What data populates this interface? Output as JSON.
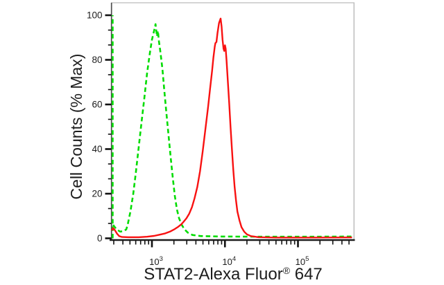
{
  "chart_data": {
    "type": "line",
    "chart_kind": "flow-cytometry-histogram-overlay",
    "title": "",
    "ylabel": "Cell Counts (% Max)",
    "xlabel": {
      "main": "STAT2-Alexa Fluor",
      "sup": "®",
      "suffix": " 647"
    },
    "x_axis": {
      "scale": "log10",
      "range": [
        282,
        580000
      ],
      "major_ticks": [
        {
          "value": 1000,
          "base": "10",
          "exp": "3"
        },
        {
          "value": 10000,
          "base": "10",
          "exp": "4"
        },
        {
          "value": 100000,
          "base": "10",
          "exp": "5"
        }
      ],
      "minor_tick_pattern": "log-decade-2-to-9"
    },
    "y_axis": {
      "range": [
        0,
        100
      ],
      "major_ticks": [
        0,
        20,
        40,
        60,
        80,
        100
      ],
      "minor_divisions_per_major": 3
    },
    "legend": "none",
    "grid": "off",
    "series": [
      {
        "name": "negative-control",
        "style": "dashed",
        "color": "#00dc00",
        "boundary_spike": {
          "x": 290,
          "from": 0,
          "to": 100
        },
        "points": [
          [
            294,
            6
          ],
          [
            328,
            4
          ],
          [
            366,
            3
          ],
          [
            408,
            3.2
          ],
          [
            445,
            4
          ],
          [
            465,
            6
          ],
          [
            508,
            12
          ],
          [
            555,
            20
          ],
          [
            605,
            30
          ],
          [
            660,
            41
          ],
          [
            721,
            52
          ],
          [
            787,
            63
          ],
          [
            858,
            74
          ],
          [
            937,
            83
          ],
          [
            1000,
            89
          ],
          [
            1070,
            93
          ],
          [
            1120,
            96
          ],
          [
            1170,
            90.5
          ],
          [
            1210,
            93
          ],
          [
            1240,
            89
          ],
          [
            1300,
            84
          ],
          [
            1390,
            76
          ],
          [
            1480,
            66
          ],
          [
            1580,
            56
          ],
          [
            1690,
            46
          ],
          [
            1810,
            36
          ],
          [
            1930,
            27
          ],
          [
            2060,
            19
          ],
          [
            2200,
            13
          ],
          [
            2350,
            9
          ],
          [
            2560,
            6
          ],
          [
            2790,
            4
          ],
          [
            3110,
            2.5
          ],
          [
            3590,
            1.5
          ],
          [
            4700,
            1
          ],
          [
            9080,
            0.8
          ],
          [
            33700,
            0.7
          ],
          [
            156000,
            0.7
          ],
          [
            578000,
            0.8
          ]
        ]
      },
      {
        "name": "stat2-stained",
        "style": "solid",
        "color": "#f81111",
        "points": [
          [
            282,
            3.5
          ],
          [
            294,
            4.6
          ],
          [
            313,
            3.5
          ],
          [
            334,
            2
          ],
          [
            356,
            1
          ],
          [
            389,
            0.6
          ],
          [
            475,
            0.5
          ],
          [
            660,
            0.5
          ],
          [
            858,
            0.7
          ],
          [
            1070,
            1.1
          ],
          [
            1270,
            1.6
          ],
          [
            1520,
            2.2
          ],
          [
            1770,
            3
          ],
          [
            2020,
            4
          ],
          [
            2250,
            5
          ],
          [
            2510,
            6.2
          ],
          [
            2730,
            7.5
          ],
          [
            2970,
            9
          ],
          [
            3240,
            11
          ],
          [
            3530,
            14
          ],
          [
            3840,
            18
          ],
          [
            4180,
            23
          ],
          [
            4550,
            30
          ],
          [
            4960,
            39
          ],
          [
            5400,
            49
          ],
          [
            5880,
            59
          ],
          [
            6260,
            67
          ],
          [
            6670,
            75
          ],
          [
            6950,
            81
          ],
          [
            7250,
            86
          ],
          [
            7410,
            87.5
          ],
          [
            7650,
            88
          ],
          [
            7900,
            92
          ],
          [
            8300,
            96.5
          ],
          [
            8720,
            98.5
          ],
          [
            9000,
            95
          ],
          [
            9280,
            89
          ],
          [
            9570,
            85
          ],
          [
            9780,
            84
          ],
          [
            10000,
            86.5
          ],
          [
            10230,
            85
          ],
          [
            10500,
            80
          ],
          [
            10930,
            71
          ],
          [
            11410,
            61
          ],
          [
            11920,
            50
          ],
          [
            12450,
            40
          ],
          [
            13000,
            31
          ],
          [
            13570,
            23
          ],
          [
            14180,
            17
          ],
          [
            14810,
            12
          ],
          [
            15800,
            8
          ],
          [
            16850,
            5
          ],
          [
            18330,
            3
          ],
          [
            19940,
            1.8
          ],
          [
            22700,
            1
          ],
          [
            28900,
            0.5
          ],
          [
            49900,
            0.35
          ],
          [
            148000,
            0.35
          ],
          [
            550000,
            0.4
          ]
        ]
      }
    ]
  }
}
